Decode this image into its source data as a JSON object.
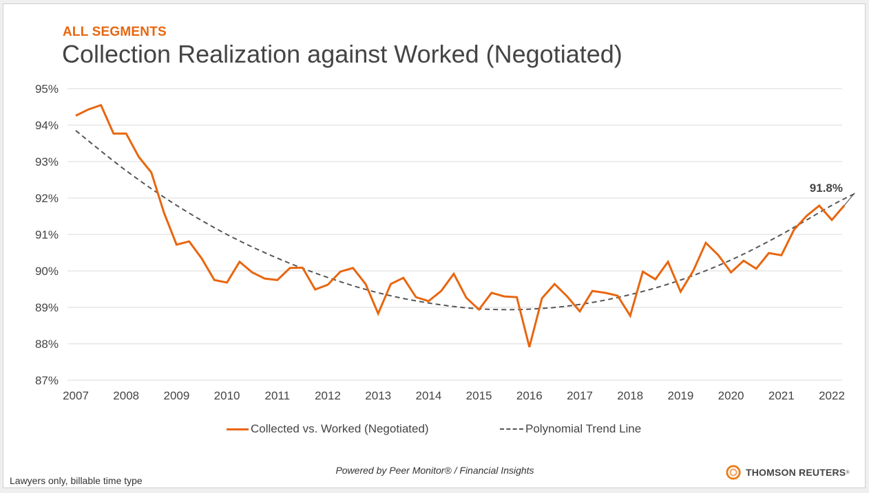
{
  "header": {
    "kicker": "ALL SEGMENTS",
    "title": "Collection Realization against Worked (Negotiated)"
  },
  "chart_data": {
    "type": "line",
    "title": "Collection Realization against Worked (Negotiated)",
    "xlabel": "",
    "ylabel": "",
    "ylim": [
      87,
      95
    ],
    "y_ticks": [
      "87%",
      "88%",
      "89%",
      "90%",
      "91%",
      "92%",
      "93%",
      "94%",
      "95%"
    ],
    "x_ticks": [
      "2007",
      "2008",
      "2009",
      "2010",
      "2011",
      "2012",
      "2013",
      "2014",
      "2015",
      "2016",
      "2017",
      "2018",
      "2019",
      "2020",
      "2021",
      "2022"
    ],
    "x_range": [
      2007,
      2022.6
    ],
    "grid": "horizontal",
    "legend_position": "bottom",
    "series": [
      {
        "name": "Collected vs. Worked (Negotiated)",
        "style": "solid",
        "color": "#e8660f",
        "x_start": 2007,
        "step": 0.25,
        "values": [
          94.26,
          94.43,
          94.55,
          93.77,
          93.77,
          93.13,
          92.7,
          91.6,
          90.72,
          90.81,
          90.34,
          89.75,
          89.68,
          90.25,
          89.96,
          89.79,
          89.75,
          90.08,
          90.09,
          89.49,
          89.62,
          89.98,
          90.08,
          89.64,
          88.83,
          89.64,
          89.81,
          89.28,
          89.17,
          89.45,
          89.92,
          89.26,
          88.94,
          89.4,
          89.3,
          89.28,
          87.91,
          89.25,
          89.64,
          89.3,
          88.89,
          89.45,
          89.4,
          89.32,
          88.77,
          89.98,
          89.77,
          90.25,
          89.43,
          90.0,
          90.77,
          90.43,
          89.96,
          90.28,
          90.06,
          90.49,
          90.43,
          91.13,
          91.51,
          91.79,
          91.4,
          91.8
        ]
      },
      {
        "name": "Polynomial Trend Line",
        "style": "dashed",
        "color": "#555555",
        "x": [
          2007,
          2008,
          2009,
          2010,
          2011,
          2012,
          2013,
          2014,
          2015,
          2016,
          2017,
          2018,
          2019,
          2020,
          2021,
          2022,
          2022.5
        ],
        "values": [
          93.85,
          92.75,
          91.8,
          91.0,
          90.35,
          89.82,
          89.4,
          89.12,
          88.96,
          88.95,
          89.08,
          89.35,
          89.75,
          90.3,
          91.0,
          91.8,
          92.15
        ]
      }
    ],
    "annotations": [
      {
        "text": "91.8%",
        "x": 2022.5,
        "y": 91.8
      }
    ]
  },
  "legend": {
    "items": [
      {
        "label": "Collected vs. Worked (Negotiated)",
        "style": "solid"
      },
      {
        "label": "Polynomial Trend Line",
        "style": "dashed"
      }
    ]
  },
  "footer": {
    "powered_by": "Powered by Peer Monitor® / Financial Insights",
    "footnote": "Lawyers only, billable time type",
    "brand": "THOMSON REUTERS",
    "brand_mark": "®"
  },
  "colors": {
    "accent": "#e8660f",
    "trend": "#555555",
    "text": "#444444",
    "grid": "#d9d9d9"
  }
}
